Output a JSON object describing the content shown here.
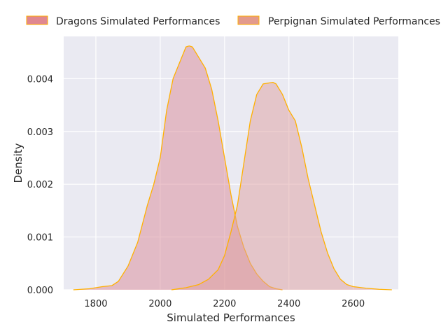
{
  "chart_data": {
    "type": "area",
    "title": "",
    "xlabel": "Simulated Performances",
    "ylabel": "Density",
    "xlim": [
      1700,
      2740
    ],
    "ylim": [
      0,
      0.0048
    ],
    "xticks": [
      1800,
      2000,
      2200,
      2400,
      2600
    ],
    "yticks": [
      0.0,
      0.001,
      0.002,
      0.003,
      0.004
    ],
    "ytick_labels": [
      "0.000",
      "0.001",
      "0.002",
      "0.003",
      "0.004"
    ],
    "grid": true,
    "legend_position": "top, above plot",
    "outline_color": "#ffb000",
    "series": [
      {
        "name": "Dragons Simulated Performances",
        "fill_color": "#d98a98",
        "legend_color": "#e08790",
        "x": [
          1730,
          1780,
          1820,
          1850,
          1870,
          1900,
          1930,
          1960,
          1980,
          2000,
          2020,
          2040,
          2060,
          2080,
          2090,
          2100,
          2120,
          2140,
          2160,
          2180,
          2200,
          2220,
          2240,
          2260,
          2280,
          2300,
          2320,
          2340,
          2360,
          2380
        ],
        "y": [
          0.0,
          2e-05,
          6e-05,
          8e-05,
          0.00016,
          0.00045,
          0.0009,
          0.0016,
          0.002,
          0.0025,
          0.0034,
          0.004,
          0.0043,
          0.0046,
          0.00462,
          0.0046,
          0.0044,
          0.0042,
          0.0038,
          0.0032,
          0.0025,
          0.0018,
          0.0012,
          0.0008,
          0.0005,
          0.0003,
          0.00016,
          6e-05,
          2e-05,
          0.0
        ]
      },
      {
        "name": "Perpignan Simulated Performances",
        "fill_color": "#dd9f9f",
        "legend_color": "#e39a8c",
        "x": [
          2035,
          2080,
          2120,
          2150,
          2180,
          2200,
          2220,
          2240,
          2260,
          2280,
          2300,
          2320,
          2340,
          2350,
          2360,
          2380,
          2400,
          2420,
          2440,
          2460,
          2480,
          2500,
          2520,
          2540,
          2560,
          2580,
          2600,
          2640,
          2680,
          2720
        ],
        "y": [
          0.0,
          4e-05,
          0.0001,
          0.0002,
          0.00038,
          0.00065,
          0.0011,
          0.0016,
          0.0024,
          0.0032,
          0.0037,
          0.0039,
          0.00392,
          0.00393,
          0.0039,
          0.0037,
          0.0034,
          0.0032,
          0.0027,
          0.0021,
          0.0016,
          0.0011,
          0.0007,
          0.0004,
          0.0002,
          0.0001,
          6e-05,
          3e-05,
          1e-05,
          0.0
        ]
      }
    ]
  }
}
